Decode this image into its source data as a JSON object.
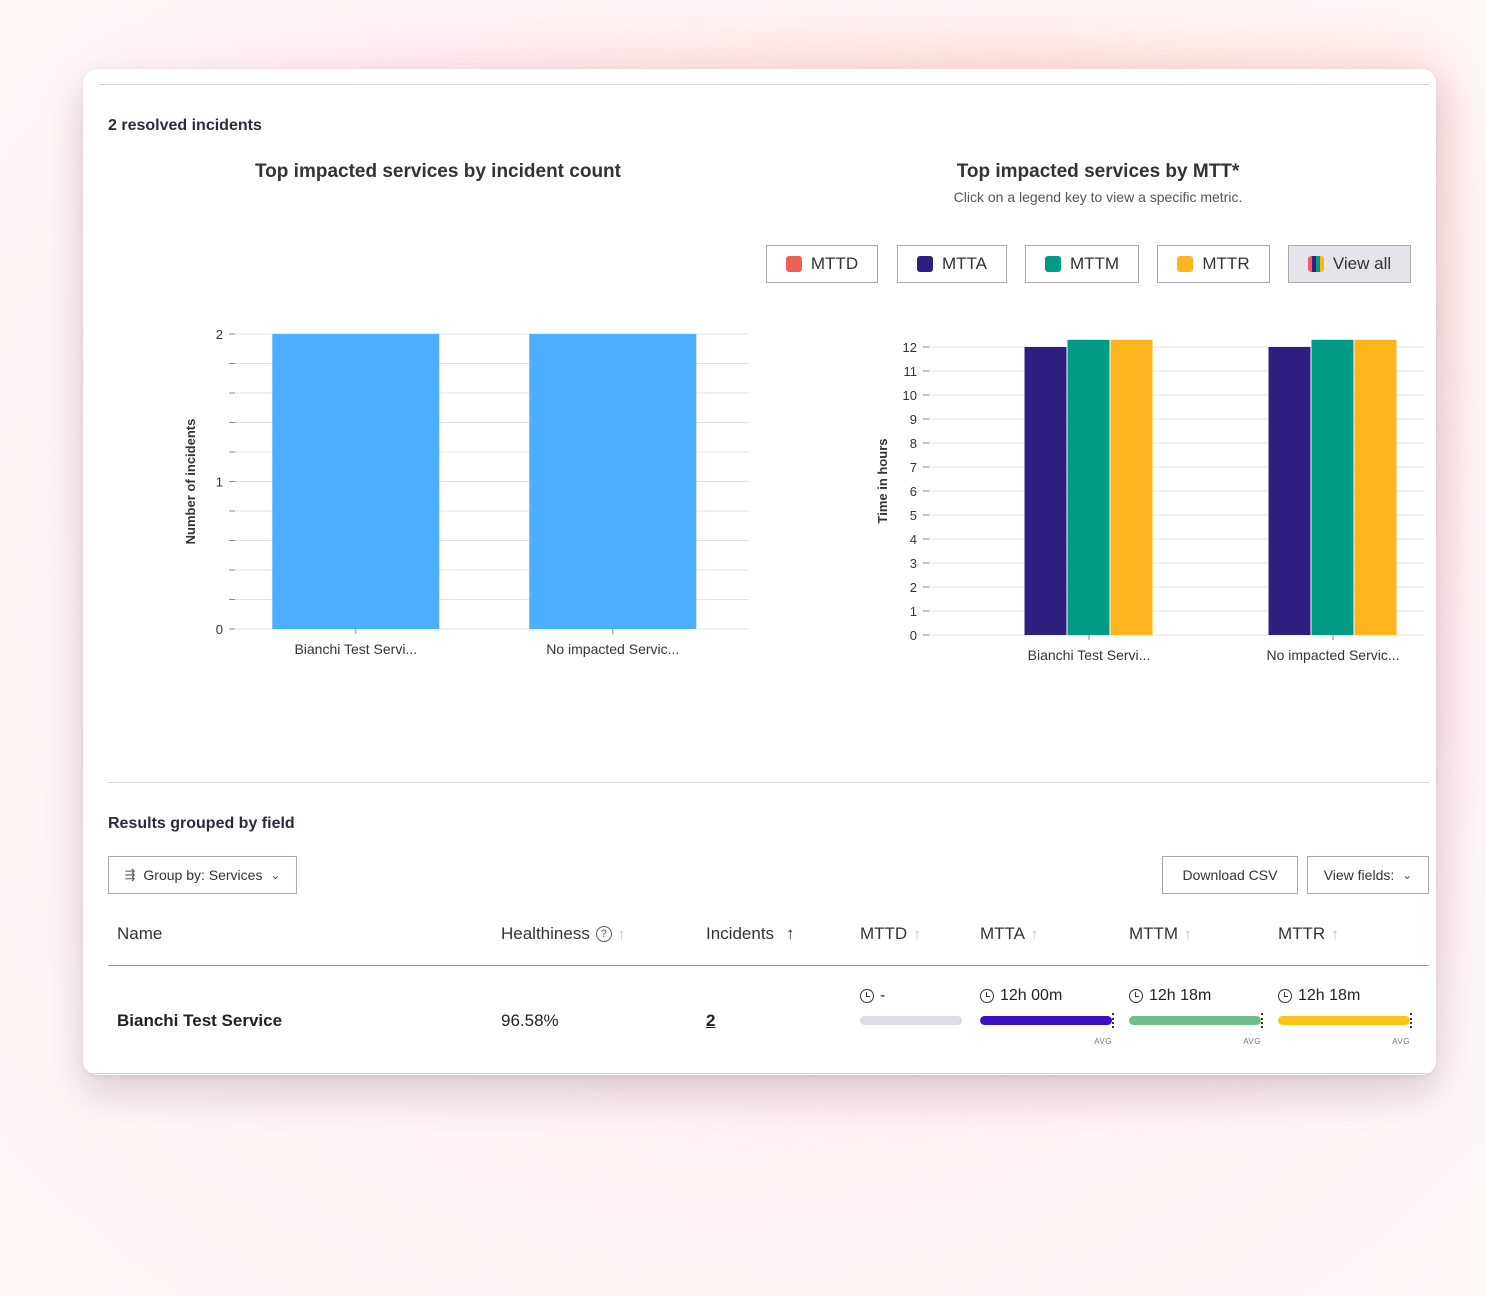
{
  "summary": {
    "resolved_label": "2 resolved incidents"
  },
  "chart_data": [
    {
      "type": "bar",
      "title": "Top impacted services by incident count",
      "ylabel": "Number of incidents",
      "xlabel": "",
      "categories": [
        "Bianchi Test Servi...",
        "No impacted Servic..."
      ],
      "values": [
        2,
        2
      ],
      "ylim": [
        0,
        2
      ],
      "yticks": [
        0,
        1,
        2
      ],
      "grid": true,
      "color": "#4dadff"
    },
    {
      "type": "bar",
      "title": "Top impacted services by MTT*",
      "subtitle": "Click on a legend key to view a specific metric.",
      "ylabel": "Time in hours",
      "xlabel": "",
      "categories": [
        "Bianchi Test Servi...",
        "No impacted Servic..."
      ],
      "series": [
        {
          "name": "MTTD",
          "color": "#f0605a",
          "values": [
            0,
            0
          ]
        },
        {
          "name": "MTTA",
          "color": "#2f1f80",
          "values": [
            12.0,
            12.0
          ]
        },
        {
          "name": "MTTM",
          "color": "#009b84",
          "values": [
            12.3,
            12.3
          ]
        },
        {
          "name": "MTTR",
          "color": "#fdb51d",
          "values": [
            12.3,
            12.3
          ]
        }
      ],
      "ylim": [
        0,
        12
      ],
      "yticks": [
        0,
        1,
        2,
        3,
        4,
        5,
        6,
        7,
        8,
        9,
        10,
        11,
        12
      ],
      "grid": true,
      "legend_placement": "top",
      "legend_view_all": "View all"
    }
  ],
  "results": {
    "title": "Results grouped by field",
    "group_by_label": "Group by: Services",
    "download_label": "Download CSV",
    "view_fields_label": "View fields:",
    "columns": {
      "name": "Name",
      "healthiness": "Healthiness",
      "incidents": "Incidents",
      "mttd": "MTTD",
      "mtta": "MTTA",
      "mttm": "MTTM",
      "mttr": "MTTR"
    },
    "rows": [
      {
        "name": "Bianchi Test Service",
        "healthiness": "96.58%",
        "incidents": "2",
        "mttd": {
          "value": "-",
          "fill": 1.0,
          "color": "#dcdce2",
          "avg": ""
        },
        "mtta": {
          "value": "12h 00m",
          "fill": 1.0,
          "color": "#3c10c4",
          "avg": "AVG"
        },
        "mttm": {
          "value": "12h 18m",
          "fill": 1.0,
          "color": "#6dbe8c",
          "avg": "AVG"
        },
        "mttr": {
          "value": "12h 18m",
          "fill": 1.0,
          "color": "#fbc51d",
          "avg": "AVG"
        }
      }
    ]
  }
}
